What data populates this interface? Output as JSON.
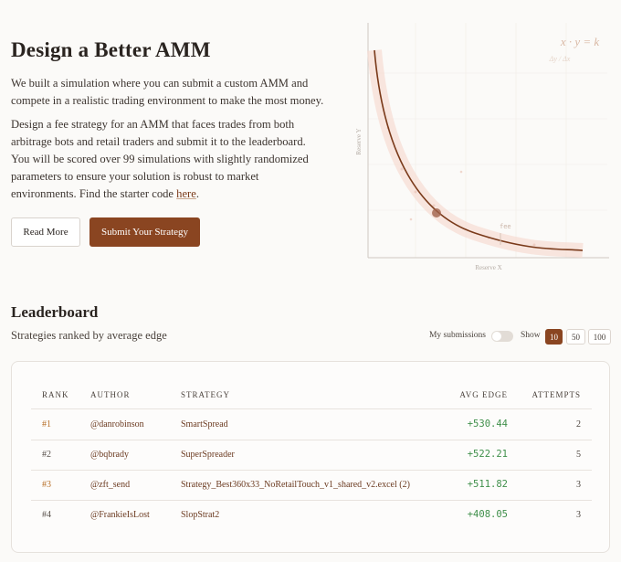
{
  "hero": {
    "title": "Design a Better AMM",
    "intro": "We built a simulation where you can submit a custom AMM and compete in a realistic trading environment to make the most money.",
    "description": "Design a fee strategy for an AMM that faces trades from both arbitrage bots and retail traders and submit it to the leaderboard. You will be scored over 99 simulations with slightly randomized parameters to ensure your solution is robust to market environments. Find the starter code ",
    "link": "here",
    "end": ".",
    "buttons": [
      "Read More",
      "Submit Your Strategy"
    ]
  },
  "figure": {
    "formula": "x · y = k",
    "subformula": "Δy / Δx",
    "y_label": "Reserve Y",
    "x_label": "Reserve X",
    "fee_label": "fee"
  },
  "leaderboard": {
    "title": "Leaderboard",
    "subtitle": "Strategies ranked by average edge",
    "toggle": "My submissions",
    "show": "Show",
    "page_sizes": [
      "10",
      "50",
      "100"
    ],
    "columns": [
      "RANK",
      "AUTHOR",
      "STRATEGY",
      "AVG EDGE",
      "ATTEMPTS"
    ],
    "rows": [
      [
        "#1",
        "@danrobinson",
        "SmartSpread",
        "+530.44",
        "2"
      ],
      [
        "#2",
        "@bqbrady",
        "SuperSpreader",
        "+522.21",
        "5"
      ],
      [
        "#3",
        "@zft_send",
        "Strategy_Best360x33_NoRetailTouch_v1_shared_v2.excel (2)",
        "+511.82",
        "3"
      ],
      [
        "#4",
        "@FrankieIsLost",
        "SlopStrat2",
        "+408.05",
        "3"
      ]
    ]
  }
}
